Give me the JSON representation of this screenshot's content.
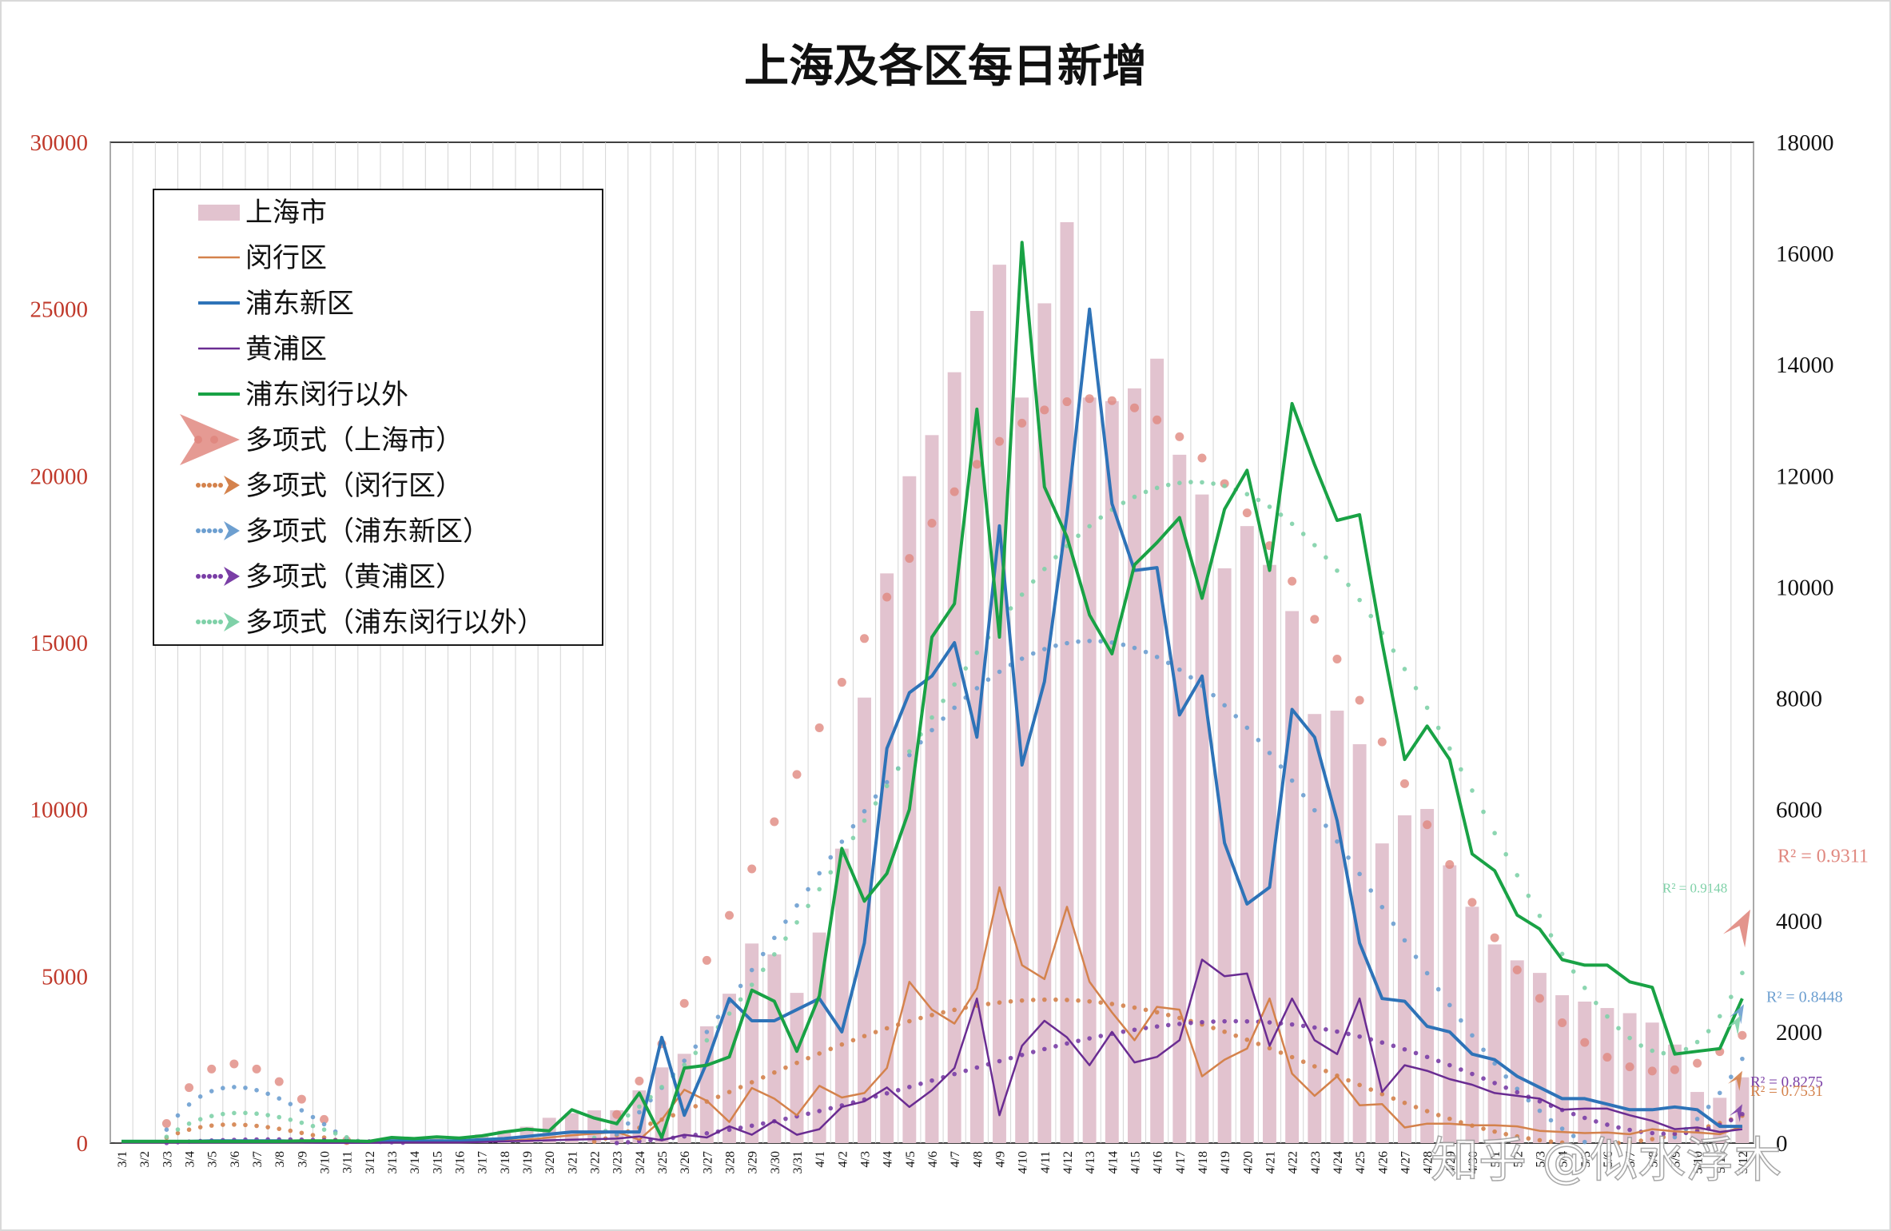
{
  "chart_data": {
    "type": "bar",
    "title": "上海及各区每日新增",
    "xlabel": "",
    "ylabel": "",
    "ylim": [
      0,
      30000
    ],
    "y2lim": [
      0,
      18000
    ],
    "y_ticks": [
      0,
      5000,
      10000,
      15000,
      20000,
      25000,
      30000
    ],
    "y2_ticks": [
      0,
      2000,
      4000,
      6000,
      8000,
      10000,
      12000,
      14000,
      16000,
      18000
    ],
    "grid": "vertical",
    "legend_position": "top-left",
    "categories": [
      "3/1",
      "3/2",
      "3/3",
      "3/4",
      "3/5",
      "3/6",
      "3/7",
      "3/8",
      "3/9",
      "3/10",
      "3/11",
      "3/12",
      "3/13",
      "3/14",
      "3/15",
      "3/16",
      "3/17",
      "3/18",
      "3/19",
      "3/20",
      "3/21",
      "3/22",
      "3/23",
      "3/24",
      "3/25",
      "3/26",
      "3/27",
      "3/28",
      "3/29",
      "3/30",
      "3/31",
      "4/1",
      "4/2",
      "4/3",
      "4/4",
      "4/5",
      "4/6",
      "4/7",
      "4/8",
      "4/9",
      "4/10",
      "4/11",
      "4/12",
      "4/13",
      "4/14",
      "4/15",
      "4/16",
      "4/17",
      "4/18",
      "4/19",
      "4/20",
      "4/21",
      "4/22",
      "4/23",
      "4/24",
      "4/25",
      "4/26",
      "4/27",
      "4/28",
      "4/29",
      "4/30",
      "5/1",
      "5/2",
      "5/3",
      "5/4",
      "5/5",
      "5/6",
      "5/7",
      "5/8",
      "5/9",
      "5/10",
      "5/11",
      "5/12"
    ],
    "series": [
      {
        "name": "上海市",
        "kind": "bar",
        "axis": "left",
        "color": "#e2c3cf",
        "values": [
          2,
          48,
          16,
          8,
          17,
          66,
          62,
          65,
          80,
          75,
          76,
          65,
          169,
          157,
          202,
          197,
          260,
          374,
          491,
          758,
          896,
          981,
          983,
          1580,
          2269,
          2676,
          3500,
          4477,
          5982,
          5656,
          4502,
          6311,
          8826,
          13354,
          17077,
          19989,
          21222,
          23107,
          24944,
          26330,
          22348,
          25173,
          27605,
          22348,
          22242,
          22623,
          23513,
          20634,
          19442,
          17229,
          18495,
          17332,
          15947,
          12862,
          12962,
          11956,
          8983,
          9825,
          10015,
          8326,
          7084,
          5955,
          5478,
          5101,
          4432,
          4241,
          4048,
          3894,
          3612,
          2953,
          1532,
          1357,
          1971
        ]
      },
      {
        "name": "闵行区",
        "kind": "line",
        "axis": "right",
        "color": "#d4824c",
        "values": [
          20,
          20,
          22,
          18,
          20,
          22,
          20,
          20,
          15,
          10,
          10,
          15,
          15,
          20,
          20,
          20,
          25,
          40,
          60,
          100,
          140,
          170,
          200,
          60,
          420,
          960,
          760,
          380,
          990,
          800,
          500,
          1030,
          820,
          900,
          1350,
          2900,
          2400,
          2150,
          2780,
          4600,
          3200,
          2950,
          4250,
          2900,
          2350,
          1850,
          2450,
          2400,
          1200,
          1500,
          1700,
          2600,
          1250,
          850,
          1200,
          680,
          700,
          280,
          350,
          350,
          320,
          320,
          300,
          220,
          200,
          180,
          190,
          160,
          250,
          210,
          190,
          160,
          300
        ]
      },
      {
        "name": "浦东新区",
        "kind": "line",
        "axis": "right",
        "color": "#2e73b8",
        "values": [
          30,
          30,
          30,
          30,
          40,
          40,
          40,
          40,
          30,
          20,
          20,
          20,
          40,
          40,
          40,
          40,
          60,
          80,
          120,
          160,
          200,
          200,
          200,
          200,
          1900,
          500,
          1450,
          2600,
          2200,
          2200,
          2400,
          2600,
          2000,
          3600,
          7100,
          8100,
          8400,
          9000,
          7300,
          11100,
          6800,
          8300,
          11300,
          15000,
          11500,
          10300,
          10350,
          7700,
          8400,
          5400,
          4300,
          4600,
          7800,
          7300,
          5800,
          3600,
          2600,
          2550,
          2100,
          2000,
          1600,
          1500,
          1200,
          1000,
          800,
          800,
          700,
          600,
          600,
          650,
          600,
          300,
          300
        ]
      },
      {
        "name": "黄浦区",
        "kind": "line",
        "axis": "right",
        "color": "#6a2c92",
        "values": [
          10,
          10,
          10,
          10,
          10,
          10,
          10,
          10,
          10,
          5,
          5,
          5,
          10,
          10,
          10,
          10,
          20,
          30,
          40,
          50,
          60,
          70,
          80,
          120,
          50,
          150,
          100,
          300,
          150,
          400,
          150,
          250,
          650,
          750,
          1000,
          650,
          950,
          1350,
          2600,
          500,
          1750,
          2200,
          1900,
          1400,
          2000,
          1450,
          1550,
          1850,
          3300,
          3000,
          3050,
          1750,
          2600,
          1850,
          1600,
          2600,
          920,
          1400,
          1300,
          1150,
          1050,
          900,
          850,
          800,
          600,
          620,
          620,
          500,
          400,
          250,
          280,
          200,
          250
        ]
      },
      {
        "name": "浦东闵行以外",
        "kind": "line",
        "axis": "right",
        "color": "#19a245",
        "values": [
          30,
          30,
          30,
          30,
          30,
          30,
          30,
          30,
          40,
          40,
          40,
          30,
          100,
          80,
          110,
          90,
          130,
          200,
          250,
          220,
          600,
          450,
          350,
          900,
          100,
          1350,
          1400,
          1550,
          2750,
          2550,
          1650,
          2650,
          5300,
          4350,
          4850,
          6000,
          9100,
          9700,
          13200,
          9100,
          16200,
          11800,
          10900,
          9500,
          8800,
          10400,
          10800,
          11250,
          9800,
          11400,
          12100,
          10300,
          13300,
          12200,
          11200,
          11300,
          9000,
          6900,
          7500,
          6900,
          5200,
          4900,
          4100,
          3850,
          3300,
          3200,
          3200,
          2900,
          2800,
          1600,
          1650,
          1700,
          2600
        ]
      }
    ],
    "trendlines": [
      {
        "name": "多项式（上海市）",
        "color": "#e08880",
        "r2": "R² = 0.9311"
      },
      {
        "name": "多项式（闵行区）",
        "color": "#d4824c",
        "r2": "R² = 0.7531"
      },
      {
        "name": "多项式（浦东新区）",
        "color": "#6d9fd0",
        "r2": "R² = 0.8448"
      },
      {
        "name": "多项式（黄浦区）",
        "color": "#7a3ea6",
        "r2": "R² = 0.8275"
      },
      {
        "name": "多项式（浦东闵行以外）",
        "color": "#7fd1a8",
        "r2": "R² = 0.9148"
      }
    ]
  },
  "watermark": "知乎 @似水浮木"
}
